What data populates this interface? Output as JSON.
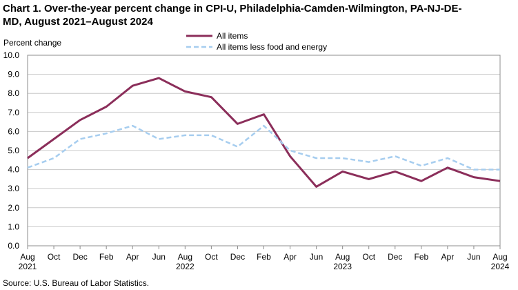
{
  "chart_data": {
    "type": "line",
    "title_line1": "Chart 1. Over-the-year percent change in CPI-U, Philadelphia-Camden-Wilmington,  PA-NJ-DE-",
    "title_line2": "MD, August 2021–August 2024",
    "ylabel": "Percent change",
    "source": "Source: U.S. Bureau of Labor Statistics.",
    "ylim": [
      0,
      10
    ],
    "yticks": [
      "0.0",
      "1.0",
      "2.0",
      "3.0",
      "4.0",
      "5.0",
      "6.0",
      "7.0",
      "8.0",
      "9.0",
      "10.0"
    ],
    "x_month_labels": [
      "Aug",
      "Oct",
      "Dec",
      "Feb",
      "Apr",
      "Jun",
      "Aug",
      "Oct",
      "Dec",
      "Feb",
      "Apr",
      "Jun",
      "Aug",
      "Oct",
      "Dec",
      "Feb",
      "Apr",
      "Jun",
      "Aug"
    ],
    "x_year_labels": [
      {
        "index": 0,
        "label": "2021"
      },
      {
        "index": 6,
        "label": "2022"
      },
      {
        "index": 12,
        "label": "2023"
      },
      {
        "index": 18,
        "label": "2024"
      }
    ],
    "series": [
      {
        "name": "All items",
        "color": "#8B2E5A",
        "style": "solid",
        "values": [
          4.6,
          5.6,
          6.6,
          7.3,
          8.4,
          8.8,
          8.1,
          7.8,
          6.4,
          6.9,
          4.7,
          3.1,
          3.9,
          3.5,
          3.9,
          3.4,
          4.1,
          3.6,
          3.4
        ]
      },
      {
        "name": "All items less food and energy",
        "color": "#A6CDEF",
        "style": "dashed",
        "values": [
          4.1,
          4.6,
          5.6,
          5.9,
          6.3,
          5.6,
          5.8,
          5.8,
          5.2,
          6.3,
          5.0,
          4.6,
          4.6,
          4.4,
          4.7,
          4.2,
          4.6,
          4.0,
          4.0
        ]
      }
    ]
  }
}
